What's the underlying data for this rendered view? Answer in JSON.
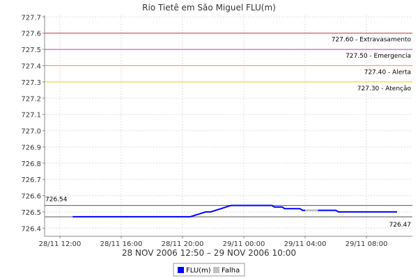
{
  "chart_data": {
    "type": "line",
    "title": "Rio Tietê em São Miguel FLU(m)",
    "subtitle": "28 NOV 2006 12:50 – 29 NOV 2006 10:00",
    "xlabel": "",
    "ylabel": "",
    "ylim": [
      726.35,
      727.71
    ],
    "yticks": [
      "726.4",
      "726.5",
      "726.6",
      "726.7",
      "726.8",
      "726.9",
      "727.0",
      "727.1",
      "727.2",
      "727.3",
      "727.4",
      "727.5",
      "727.6",
      "727.7"
    ],
    "xticks": [
      {
        "t": "2006-11-28T12:00",
        "label": "28/11 12:00"
      },
      {
        "t": "2006-11-28T16:00",
        "label": "28/11 16:00"
      },
      {
        "t": "2006-11-28T20:00",
        "label": "28/11 20:00"
      },
      {
        "t": "2006-11-29T00:00",
        "label": "29/11 00:00"
      },
      {
        "t": "2006-11-29T04:00",
        "label": "29/11 04:00"
      },
      {
        "t": "2006-11-29T08:00",
        "label": "29/11 08:00"
      }
    ],
    "xlim": [
      "2006-11-28T11:00",
      "2006-11-29T11:00"
    ],
    "thresholds": [
      {
        "value": 727.6,
        "label": "727.60 - Extravasamento",
        "color": "#cc3333"
      },
      {
        "value": 727.5,
        "label": "727.50 - Emergencia",
        "color": "#cc33cc"
      },
      {
        "value": 727.4,
        "label": "727.40 - Alerta",
        "color": "#ff9933"
      },
      {
        "value": 727.3,
        "label": "727.30 - Atenção",
        "color": "#ffcc00"
      }
    ],
    "reference_lines": [
      {
        "value": 726.54,
        "label": "726.54",
        "color": "#555555",
        "label_side": "left"
      },
      {
        "value": 726.47,
        "label": "726.47",
        "color": "#555555",
        "label_side": "right"
      }
    ],
    "series": [
      {
        "name": "FLU(m)",
        "color": "#0000ff",
        "x": [
          "2006-11-28T12:50",
          "2006-11-28T20:30",
          "2006-11-28T20:50",
          "2006-11-28T21:10",
          "2006-11-28T21:30",
          "2006-11-28T21:50",
          "2006-11-28T22:10",
          "2006-11-28T22:30",
          "2006-11-28T22:50",
          "2006-11-28T23:10",
          "2006-11-29T01:50",
          "2006-11-29T02:00",
          "2006-11-29T02:30",
          "2006-11-29T02:40",
          "2006-11-29T03:40",
          "2006-11-29T03:50",
          "2006-11-29T04:20",
          "2006-11-29T04:30",
          "2006-11-29T05:00",
          "2006-11-29T05:10",
          "2006-11-29T06:00",
          "2006-11-29T06:10",
          "2006-11-29T10:00"
        ],
        "values": [
          726.47,
          726.47,
          726.48,
          726.49,
          726.5,
          726.5,
          726.51,
          726.52,
          726.53,
          726.54,
          726.54,
          726.53,
          726.53,
          726.52,
          726.52,
          726.51,
          726.51,
          726.51,
          726.51,
          726.51,
          726.51,
          726.5,
          726.5
        ]
      },
      {
        "name": "Falha",
        "color": "#c0c0c0",
        "x": [
          "2006-11-29T04:00",
          "2006-11-29T04:50"
        ],
        "values": [
          726.51,
          726.51
        ]
      }
    ],
    "grid": true,
    "legend_position": "bottom-center"
  }
}
